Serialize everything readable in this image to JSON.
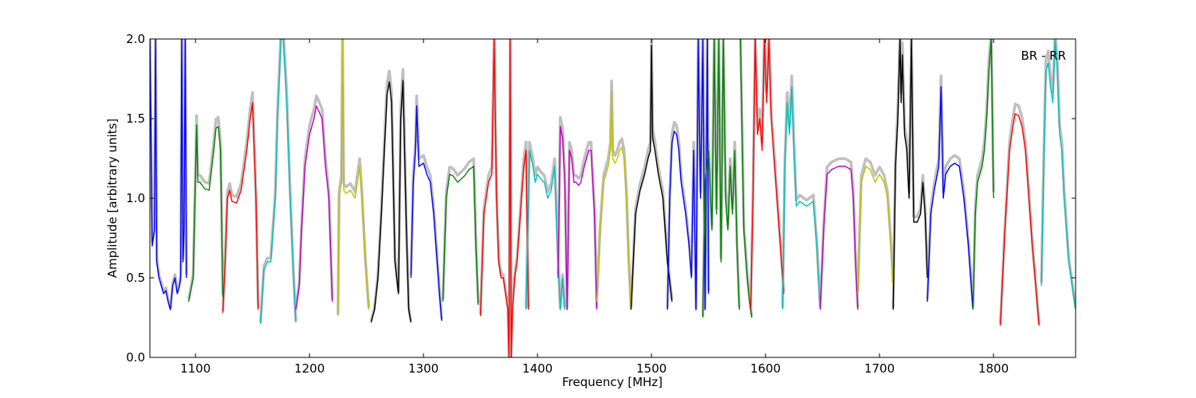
{
  "chart_data": {
    "type": "line",
    "title": "",
    "annotation": "BR - RR",
    "xlabel": "Frequency [MHz]",
    "ylabel": "Amplitude [arbitrary units]",
    "xlim": [
      1060,
      1872
    ],
    "ylim": [
      0.0,
      2.0
    ],
    "xticks": [
      1100,
      1200,
      1300,
      1400,
      1500,
      1600,
      1700,
      1800
    ],
    "yticks": [
      0.0,
      0.5,
      1.0,
      1.5,
      2.0
    ],
    "xtick_labels": [
      "1100",
      "1200",
      "1300",
      "1400",
      "1500",
      "1600",
      "1700",
      "1800"
    ],
    "ytick_labels": [
      "0.0",
      "0.5",
      "1.0",
      "1.5",
      "2.0"
    ],
    "grid": false,
    "background_color": "#bfbfbf",
    "series": [
      {
        "color": "#0000ff",
        "x": [
          1060,
          1062,
          1064,
          1065,
          1066,
          1068,
          1070,
          1072,
          1074,
          1076,
          1078,
          1080,
          1082,
          1084,
          1086,
          1087,
          1088,
          1089,
          1090,
          1091,
          1092
        ],
        "y": [
          2.0,
          0.7,
          0.8,
          2.0,
          0.6,
          0.5,
          0.45,
          0.4,
          0.42,
          0.35,
          0.3,
          0.45,
          0.5,
          0.4,
          0.45,
          0.5,
          2.0,
          0.6,
          0.8,
          2.0,
          0.5
        ]
      },
      {
        "color": "#008000",
        "x": [
          1094,
          1098,
          1101,
          1102,
          1104,
          1108,
          1112,
          1116,
          1118,
          1120,
          1122,
          1124
        ],
        "y": [
          0.35,
          0.5,
          1.46,
          1.1,
          1.1,
          1.06,
          1.05,
          1.3,
          1.44,
          1.45,
          1.3,
          0.38
        ]
      },
      {
        "color": "#ff0000",
        "x": [
          1124,
          1126,
          1128,
          1130,
          1132,
          1136,
          1140,
          1143,
          1145,
          1148,
          1150,
          1153,
          1155
        ],
        "y": [
          0.28,
          0.6,
          1.0,
          1.05,
          0.98,
          0.97,
          1.05,
          1.2,
          1.3,
          1.5,
          1.6,
          1.0,
          0.3
        ]
      },
      {
        "color": "#00bfbf",
        "x": [
          1157,
          1160,
          1163,
          1166,
          1170,
          1172,
          1175,
          1177,
          1180,
          1183,
          1186,
          1188
        ],
        "y": [
          0.21,
          0.55,
          0.6,
          0.6,
          1.0,
          1.5,
          2.0,
          2.0,
          1.6,
          1.0,
          0.5,
          0.22
        ]
      },
      {
        "color": "#bf00bf",
        "x": [
          1188,
          1191,
          1193,
          1196,
          1200,
          1204,
          1206,
          1208,
          1211,
          1214,
          1217,
          1220
        ],
        "y": [
          0.3,
          0.45,
          0.8,
          1.2,
          1.4,
          1.5,
          1.58,
          1.55,
          1.5,
          1.2,
          1.0,
          0.35
        ]
      },
      {
        "color": "#bfbf00",
        "x": [
          1225,
          1226,
          1228,
          1229,
          1230,
          1232,
          1236,
          1240,
          1242,
          1244,
          1246,
          1249,
          1252
        ],
        "y": [
          0.26,
          1.0,
          1.1,
          2.0,
          1.05,
          1.03,
          1.05,
          1.0,
          1.1,
          1.2,
          1.0,
          0.6,
          0.3
        ]
      },
      {
        "color": "#000000",
        "x": [
          1254,
          1257,
          1260,
          1263,
          1265,
          1268,
          1270,
          1272,
          1275,
          1278,
          1280,
          1282,
          1285,
          1287,
          1289
        ],
        "y": [
          0.22,
          0.3,
          0.5,
          0.9,
          1.2,
          1.65,
          1.73,
          1.6,
          0.6,
          0.4,
          1.5,
          1.74,
          0.8,
          0.3,
          0.22
        ]
      },
      {
        "color": "#0000ff",
        "x": [
          1289,
          1291,
          1293,
          1294,
          1296,
          1300,
          1303,
          1306,
          1309,
          1312,
          1314,
          1316
        ],
        "y": [
          0.5,
          1.1,
          1.3,
          1.58,
          1.2,
          1.22,
          1.15,
          1.1,
          0.9,
          0.6,
          0.4,
          0.23
        ]
      },
      {
        "color": "#008000",
        "x": [
          1317,
          1320,
          1323,
          1326,
          1330,
          1336,
          1340,
          1344,
          1346,
          1348
        ],
        "y": [
          0.35,
          1.0,
          1.15,
          1.14,
          1.1,
          1.14,
          1.18,
          1.2,
          0.7,
          0.33
        ]
      },
      {
        "color": "#ff0000",
        "x": [
          1350,
          1353,
          1357,
          1360,
          1362,
          1364,
          1366,
          1368,
          1370,
          1372,
          1374,
          1375,
          1376,
          1377,
          1378,
          1380,
          1382,
          1384,
          1386,
          1388,
          1390,
          1392
        ],
        "y": [
          0.26,
          0.9,
          1.1,
          1.15,
          2.0,
          1.0,
          0.6,
          0.5,
          0.5,
          0.4,
          0.3,
          0.0,
          2.0,
          0.0,
          0.3,
          0.5,
          0.6,
          0.8,
          1.0,
          1.2,
          1.3,
          0.3
        ]
      },
      {
        "color": "#00bfbf",
        "x": [
          1390,
          1393,
          1396,
          1398,
          1400,
          1403,
          1406,
          1409,
          1412,
          1415,
          1418,
          1420,
          1422,
          1424
        ],
        "y": [
          0.3,
          1.3,
          1.2,
          1.1,
          1.15,
          1.12,
          1.1,
          1.0,
          1.05,
          1.2,
          0.6,
          0.3,
          0.5,
          0.3
        ]
      },
      {
        "color": "#bf00bf",
        "x": [
          1418,
          1420,
          1422,
          1424,
          1426,
          1428,
          1430,
          1432,
          1434,
          1436,
          1438,
          1441,
          1443,
          1445,
          1447,
          1450,
          1452
        ],
        "y": [
          0.5,
          1.45,
          1.38,
          1.1,
          0.3,
          1.3,
          1.25,
          1.1,
          1.1,
          1.08,
          1.1,
          1.2,
          1.25,
          1.3,
          1.3,
          0.9,
          0.3
        ]
      },
      {
        "color": "#bfbf00",
        "x": [
          1452,
          1455,
          1458,
          1460,
          1462,
          1464,
          1465,
          1466,
          1468,
          1470,
          1472,
          1474,
          1476,
          1478,
          1480,
          1482
        ],
        "y": [
          0.35,
          0.8,
          1.1,
          1.15,
          1.2,
          1.3,
          1.67,
          1.25,
          1.22,
          1.25,
          1.3,
          1.32,
          1.25,
          1.0,
          0.6,
          0.3
        ]
      },
      {
        "color": "#000000",
        "x": [
          1482,
          1486,
          1490,
          1494,
          1497,
          1499,
          1500,
          1501,
          1503,
          1506,
          1510,
          1514,
          1518
        ],
        "y": [
          0.3,
          0.9,
          1.05,
          1.15,
          1.25,
          1.3,
          1.96,
          1.38,
          1.3,
          1.15,
          1.0,
          0.6,
          0.35
        ]
      },
      {
        "color": "#0000ff",
        "x": [
          1514,
          1516,
          1518,
          1520,
          1522,
          1524,
          1526,
          1528,
          1530,
          1533,
          1535,
          1537,
          1539,
          1541,
          1543,
          1545,
          1547,
          1549,
          1550
        ],
        "y": [
          0.3,
          1.0,
          1.35,
          1.42,
          1.4,
          1.3,
          1.1,
          1.0,
          0.9,
          0.7,
          0.5,
          1.3,
          0.3,
          2.0,
          1.0,
          2.0,
          0.3,
          2.0,
          0.4
        ]
      },
      {
        "color": "#008000",
        "x": [
          1545,
          1547,
          1550,
          1553,
          1555,
          1557,
          1559,
          1561,
          1563,
          1565,
          1567,
          1569,
          1571,
          1573,
          1575,
          1577
        ],
        "y": [
          0.25,
          1.1,
          1.3,
          0.8,
          2.0,
          0.9,
          2.0,
          0.6,
          2.0,
          1.0,
          0.8,
          1.2,
          0.9,
          1.3,
          0.7,
          0.3
        ]
      },
      {
        "color": "#008000",
        "x": [
          1578,
          1581,
          1584,
          1586,
          1588
        ],
        "y": [
          2.0,
          0.8,
          0.5,
          0.35,
          0.25
        ]
      },
      {
        "color": "#ff0000",
        "x": [
          1587,
          1589,
          1591,
          1593,
          1595,
          1597,
          1599,
          1601,
          1603,
          1605,
          1608,
          1612,
          1616
        ],
        "y": [
          0.3,
          1.0,
          2.0,
          1.4,
          1.5,
          1.3,
          2.0,
          1.6,
          2.0,
          1.5,
          1.2,
          0.8,
          0.4
        ]
      },
      {
        "color": "#00bfbf",
        "x": [
          1615,
          1617,
          1619,
          1621,
          1623,
          1625,
          1627,
          1630,
          1636,
          1642,
          1645,
          1648
        ],
        "y": [
          0.3,
          1.2,
          1.6,
          1.4,
          1.7,
          1.3,
          0.95,
          0.98,
          0.95,
          0.98,
          0.7,
          0.3
        ]
      },
      {
        "color": "#bf00bf",
        "x": [
          1648,
          1651,
          1654,
          1658,
          1664,
          1670,
          1675,
          1677,
          1679,
          1681
        ],
        "y": [
          0.3,
          0.8,
          1.15,
          1.18,
          1.2,
          1.2,
          1.18,
          1.0,
          0.6,
          0.3
        ]
      },
      {
        "color": "#bfbf00",
        "x": [
          1681,
          1684,
          1688,
          1692,
          1696,
          1700,
          1704,
          1707,
          1710,
          1712
        ],
        "y": [
          0.4,
          1.1,
          1.2,
          1.18,
          1.1,
          1.15,
          1.1,
          1.0,
          0.7,
          0.45
        ]
      },
      {
        "color": "#000000",
        "x": [
          1712,
          1714,
          1716,
          1718,
          1719,
          1720,
          1722,
          1724,
          1726,
          1728,
          1730,
          1733,
          1736,
          1738,
          1740,
          1742
        ],
        "y": [
          0.3,
          1.2,
          1.5,
          2.0,
          1.6,
          1.9,
          1.4,
          1.3,
          1.0,
          2.0,
          0.85,
          0.85,
          0.9,
          1.1,
          0.9,
          0.5
        ]
      },
      {
        "color": "#0000ff",
        "x": [
          1742,
          1745,
          1748,
          1752,
          1754,
          1756,
          1758,
          1762,
          1766,
          1770,
          1774,
          1778,
          1782
        ],
        "y": [
          0.35,
          0.9,
          1.05,
          1.2,
          1.7,
          1.0,
          1.15,
          1.2,
          1.22,
          1.2,
          1.0,
          0.7,
          0.3
        ]
      },
      {
        "color": "#008000",
        "x": [
          1782,
          1784,
          1786,
          1788,
          1790,
          1792,
          1794,
          1796,
          1798,
          1800
        ],
        "y": [
          0.3,
          0.9,
          1.1,
          1.15,
          1.2,
          1.3,
          1.5,
          1.8,
          2.0,
          1.0
        ]
      },
      {
        "color": "#ff0000",
        "x": [
          1806,
          1810,
          1814,
          1817,
          1819,
          1822,
          1825,
          1828,
          1831,
          1834,
          1837,
          1840
        ],
        "y": [
          0.2,
          0.8,
          1.3,
          1.45,
          1.53,
          1.52,
          1.45,
          1.3,
          1.0,
          0.7,
          0.45,
          0.2
        ]
      },
      {
        "color": "#00bfbf",
        "x": [
          1842,
          1844,
          1846,
          1848,
          1850,
          1852,
          1854,
          1856,
          1858,
          1860,
          1862,
          1864,
          1866,
          1868,
          1870,
          1872
        ],
        "y": [
          0.45,
          1.2,
          1.8,
          1.85,
          1.7,
          1.6,
          2.0,
          1.8,
          1.4,
          1.3,
          1.0,
          0.8,
          0.6,
          0.5,
          0.4,
          0.3
        ]
      }
    ]
  }
}
